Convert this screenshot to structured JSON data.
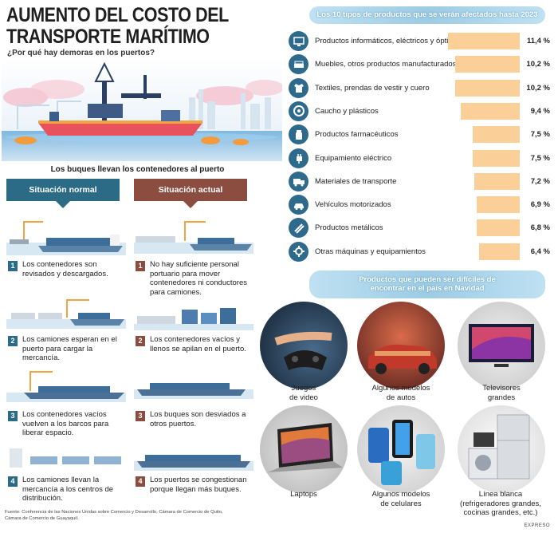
{
  "header": {
    "title_line1": "AUMENTO DEL COSTO DEL",
    "title_line2": "TRANSPORTE MARÍTIMO",
    "subtitle": "¿Por qué hay demoras en los puertos?"
  },
  "flow": {
    "heading": "Los buques llevan los contenedores al puerto",
    "normal_title": "Situación normal",
    "actual_title": "Situación actual",
    "normal_steps": [
      {
        "n": "1",
        "text": "Los contenedores son revisados y descargados."
      },
      {
        "n": "2",
        "text": "Los camiones esperan en el puerto para cargar la mercancía."
      },
      {
        "n": "3",
        "text": "Los contenedores vacíos vuelven a los barcos para liberar espacio."
      },
      {
        "n": "4",
        "text": "Los camiones llevan la mercancía a los centros de distribución."
      }
    ],
    "actual_steps": [
      {
        "n": "1",
        "text": "No hay suficiente personal portuario para mover contenedores ni conductores para camiones."
      },
      {
        "n": "2",
        "text": "Los contenedores vacíos y llenos se apilan en el puerto."
      },
      {
        "n": "3",
        "text": "Los buques son desviados a otros puertos."
      },
      {
        "n": "4",
        "text": "Los puertos se congestionan porque llegan más buques."
      }
    ]
  },
  "products": {
    "title": "Los 10 tipos de productos que se verán afectados hasta 2023",
    "items": [
      {
        "label": "Productos informáticos, eléctricos y ópticos",
        "value": "11,4 %",
        "pct": 11.4,
        "icon": "computer-icon"
      },
      {
        "label": "Muebles, otros productos manufacturados",
        "value": "10,2 %",
        "pct": 10.2,
        "icon": "sofa-icon"
      },
      {
        "label": "Textiles, prendas de vestir y cuero",
        "value": "10,2 %",
        "pct": 10.2,
        "icon": "shirt-icon"
      },
      {
        "label": "Caucho y plásticos",
        "value": "9,4 %",
        "pct": 9.4,
        "icon": "tire-icon"
      },
      {
        "label": "Productos farmacéuticos",
        "value": "7,5 %",
        "pct": 7.5,
        "icon": "pill-bottle-icon"
      },
      {
        "label": "Equipamiento eléctrico",
        "value": "7,5 %",
        "pct": 7.5,
        "icon": "plug-icon"
      },
      {
        "label": "Materiales de transporte",
        "value": "7,2 %",
        "pct": 7.2,
        "icon": "truck-icon"
      },
      {
        "label": "Vehículos motorizados",
        "value": "6,9 %",
        "pct": 6.9,
        "icon": "car-icon"
      },
      {
        "label": "Productos metálicos",
        "value": "6,8 %",
        "pct": 6.8,
        "icon": "metal-bars-icon"
      },
      {
        "label": "Otras máquinas y equipamientos",
        "value": "6,4 %",
        "pct": 6.4,
        "icon": "machine-icon"
      }
    ]
  },
  "christmas": {
    "title_line1": "Productos que pueden ser difíciles de",
    "title_line2": "encontrar en el país en Navidad",
    "items": [
      {
        "label_line1": "Juegos",
        "label_line2": "de video",
        "label_line3": ""
      },
      {
        "label_line1": "Algunos modelos",
        "label_line2": "de autos",
        "label_line3": ""
      },
      {
        "label_line1": "Televisores",
        "label_line2": "grandes",
        "label_line3": ""
      },
      {
        "label_line1": "Laptops",
        "label_line2": "",
        "label_line3": ""
      },
      {
        "label_line1": "Algunos modelos",
        "label_line2": "de celulares",
        "label_line3": ""
      },
      {
        "label_line1": "Línea blanca",
        "label_line2": "(refrigeradores grandes,",
        "label_line3": "cocinas grandes, etc.)"
      }
    ]
  },
  "footer": {
    "source_line1": "Fuente: Conferencia de las Naciones Unidas sobre Comercio y Desarrollo, Cámara de Comercio de Quito,",
    "source_line2": "Cámara de Comercio de Guayaquil.",
    "brand": "EXPRESO"
  },
  "colors": {
    "normal": "#2c6b86",
    "actual": "#8a4d3f",
    "bar": "#fbcf98",
    "icon": "#2e6a8c",
    "banner": "#9ccbe4"
  }
}
